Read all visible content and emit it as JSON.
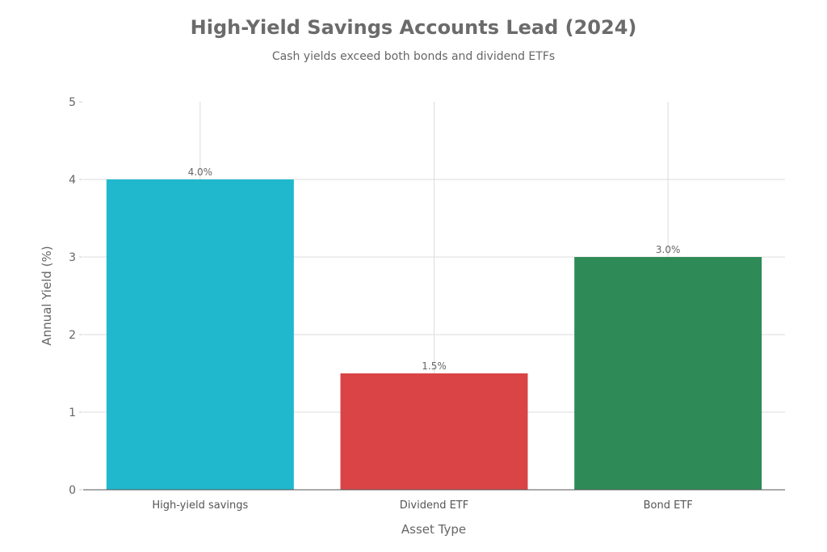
{
  "chart_data": {
    "type": "bar",
    "title": "High-Yield Savings Accounts Lead (2024)",
    "subtitle": "Cash yields exceed both bonds and dividend ETFs",
    "xlabel": "Asset Type",
    "ylabel": "Annual Yield (%)",
    "categories": [
      "High-yield savings",
      "Dividend ETF",
      "Bond ETF"
    ],
    "values": [
      4.0,
      1.5,
      3.0
    ],
    "data_labels": [
      "4.0%",
      "1.5%",
      "3.0%"
    ],
    "colors": [
      "#20b8cc",
      "#db4446",
      "#2e8b57"
    ],
    "ylim": [
      0,
      5
    ],
    "yticks": [
      "0",
      "1",
      "2",
      "3",
      "4",
      "5"
    ],
    "grid": true,
    "legend": "none"
  }
}
